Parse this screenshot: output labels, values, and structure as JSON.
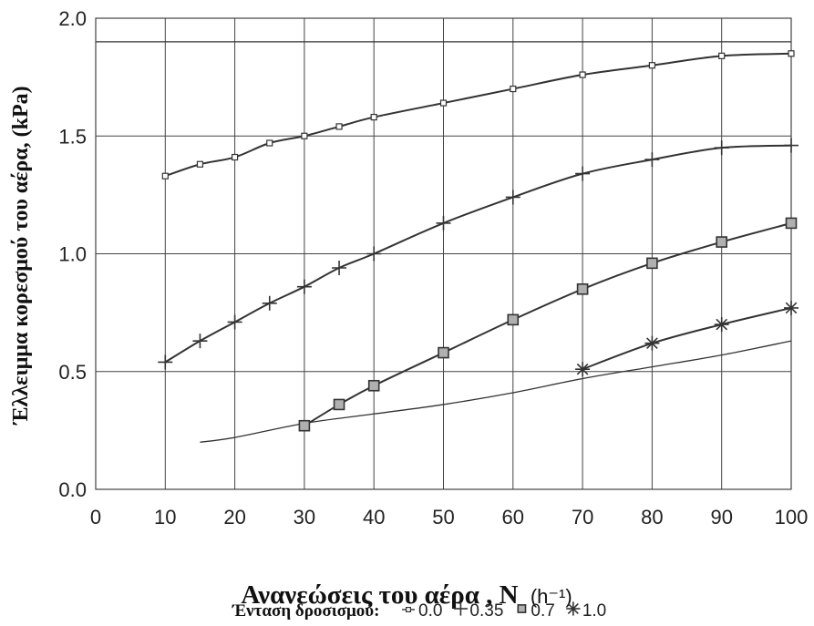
{
  "chart_data": {
    "type": "line",
    "title": "",
    "xlabel": "Ανανεώσεις του αέρα , N",
    "xlabel_unit": "(h⁻¹)",
    "ylabel": "Έλλειμμα κορεσμού του αέρα, (kPa)",
    "xlim": [
      0,
      100
    ],
    "ylim": [
      0,
      2.0
    ],
    "xticks": [
      0,
      10,
      20,
      30,
      40,
      50,
      60,
      70,
      80,
      90,
      100
    ],
    "yticks": [
      0.0,
      0.5,
      1.0,
      1.5,
      2.0
    ],
    "ytick_labels": [
      "0.0",
      "0.5",
      "1.0",
      "1.5",
      "2.0"
    ],
    "grid": true,
    "legend_placement": "bottom",
    "legend_title": "Ένταση δροσισμού:",
    "reference_lines": [
      {
        "type": "horizontal",
        "y": 1.9
      },
      {
        "type": "line",
        "x": [
          15,
          20,
          30,
          40,
          50,
          60,
          70,
          80,
          90,
          100
        ],
        "y": [
          0.2,
          0.22,
          0.28,
          0.32,
          0.36,
          0.41,
          0.47,
          0.52,
          0.57,
          0.63
        ]
      }
    ],
    "series": [
      {
        "name": "0.0",
        "marker": "small-square",
        "x": [
          10,
          15,
          20,
          25,
          30,
          35,
          40,
          50,
          60,
          70,
          80,
          90,
          100
        ],
        "y": [
          1.33,
          1.38,
          1.41,
          1.47,
          1.5,
          1.54,
          1.58,
          1.64,
          1.7,
          1.76,
          1.8,
          1.84,
          1.85
        ]
      },
      {
        "name": "0.35",
        "marker": "plus",
        "x": [
          10,
          15,
          20,
          25,
          30,
          35,
          40,
          50,
          60,
          70,
          80,
          90,
          100
        ],
        "y": [
          0.54,
          0.63,
          0.71,
          0.79,
          0.86,
          0.94,
          1.0,
          1.13,
          1.24,
          1.34,
          1.4,
          1.45,
          1.46
        ]
      },
      {
        "name": "0.7",
        "marker": "square",
        "x": [
          30,
          35,
          40,
          50,
          60,
          70,
          80,
          90,
          100
        ],
        "y": [
          0.27,
          0.36,
          0.44,
          0.58,
          0.72,
          0.85,
          0.96,
          1.05,
          1.13
        ]
      },
      {
        "name": "1.0",
        "marker": "asterisk",
        "x": [
          70,
          80,
          90,
          100
        ],
        "y": [
          0.51,
          0.62,
          0.7,
          0.77
        ]
      }
    ]
  },
  "colors": {
    "line": "#333333",
    "grid": "#444444",
    "marker_fill": "#b0b0b0"
  }
}
